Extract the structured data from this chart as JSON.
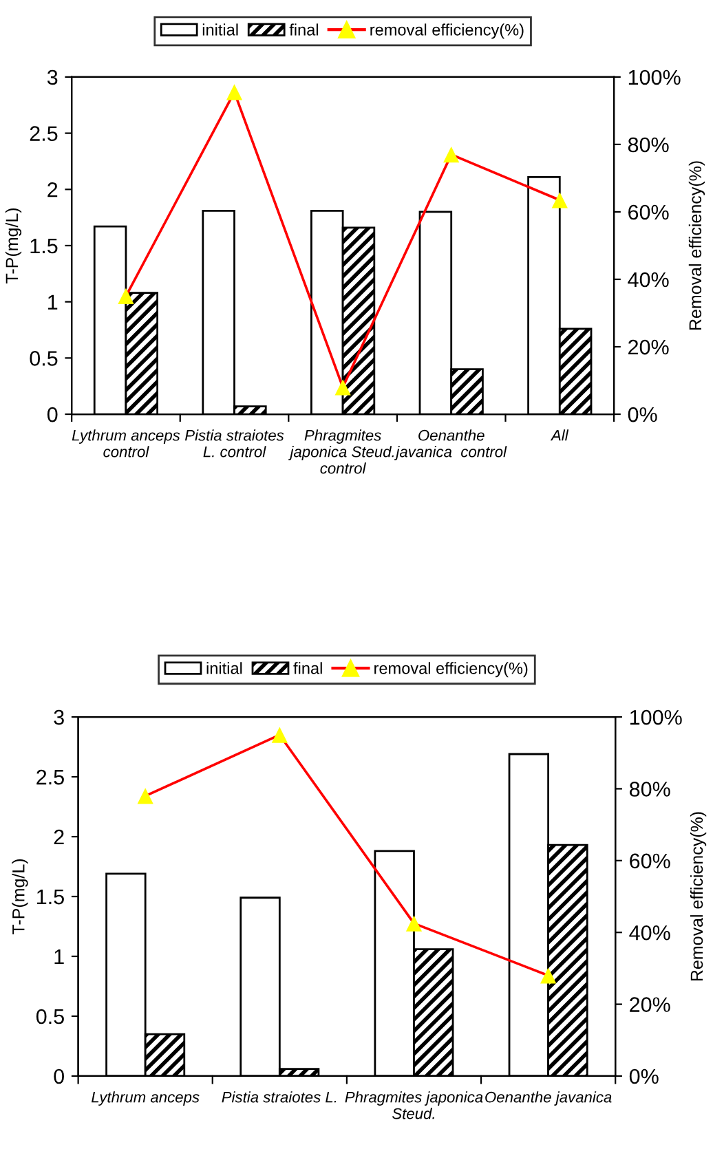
{
  "chart_data": [
    {
      "type": "bar",
      "ylabel": "T-P(mg/L)",
      "y2label": "Removal efficiency(%)",
      "categories": [
        "Lythrum anceps\ncontrol",
        "Pistia straiotes\nL. control",
        "Phragmites\njaponica Steud.\ncontrol",
        "Oenanthe\njavanica  control",
        "All"
      ],
      "series": [
        {
          "name": "initial",
          "color": "#ffffff",
          "values": [
            1.67,
            1.81,
            1.81,
            1.8,
            2.11
          ]
        },
        {
          "name": "final",
          "color": "#000000",
          "values": [
            1.08,
            0.07,
            1.66,
            0.4,
            0.76
          ]
        },
        {
          "name": "removal efficiency(%)",
          "type": "line",
          "axis": "y2",
          "color": "#ff0000",
          "colors": [
            "#ffff00",
            "#ffff00",
            "#ffff00",
            "#ffff00",
            "#ffff00"
          ],
          "values": [
            35,
            95.5,
            8,
            77,
            63.5
          ]
        }
      ],
      "ylim": [
        0,
        3
      ],
      "yticks": [
        0,
        0.5,
        1,
        1.5,
        2,
        2.5,
        3
      ],
      "y2lim": [
        0,
        100
      ],
      "y2ticks": [
        {
          "value": 0,
          "label": "0%"
        },
        {
          "value": 20,
          "label": "20%"
        },
        {
          "value": 40,
          "label": "40%"
        },
        {
          "value": 60,
          "label": "60%"
        },
        {
          "value": 80,
          "label": "80%"
        },
        {
          "value": 100,
          "label": "100%"
        }
      ],
      "legend": "top",
      "grid": false,
      "marker": "triangle",
      "line_style": "solid"
    },
    {
      "type": "bar",
      "ylabel": "T-P(mg/L)",
      "y2label": "Removal efficiency(%)",
      "categories": [
        "Lythrum anceps",
        "Pistia straiotes L.",
        "Phragmites japonica\nSteud.",
        "Oenanthe javanica"
      ],
      "series": [
        {
          "name": "initial",
          "color": "#ffffff",
          "values": [
            1.69,
            1.49,
            1.88,
            2.69
          ]
        },
        {
          "name": "final",
          "color": "#000000",
          "values": [
            0.35,
            0.06,
            1.06,
            1.93
          ]
        },
        {
          "name": "removal efficiency(%)",
          "type": "line",
          "axis": "y2",
          "color": "#ff0000",
          "colors": [
            "#ffff00",
            "#ffff00",
            "#ffff00",
            "#ffff00"
          ],
          "values": [
            78,
            95,
            42.5,
            28
          ]
        }
      ],
      "ylim": [
        0,
        3
      ],
      "yticks": [
        0,
        0.5,
        1,
        1.5,
        2,
        2.5,
        3
      ],
      "y2lim": [
        0,
        100
      ],
      "y2ticks": [
        {
          "value": 0,
          "label": "0%"
        },
        {
          "value": 20,
          "label": "20%"
        },
        {
          "value": 40,
          "label": "40%"
        },
        {
          "value": 60,
          "label": "60%"
        },
        {
          "value": 80,
          "label": "80%"
        },
        {
          "value": 100,
          "label": "100%"
        }
      ],
      "legend": "top",
      "grid": false,
      "marker": "triangle",
      "line_style": "solid"
    }
  ]
}
